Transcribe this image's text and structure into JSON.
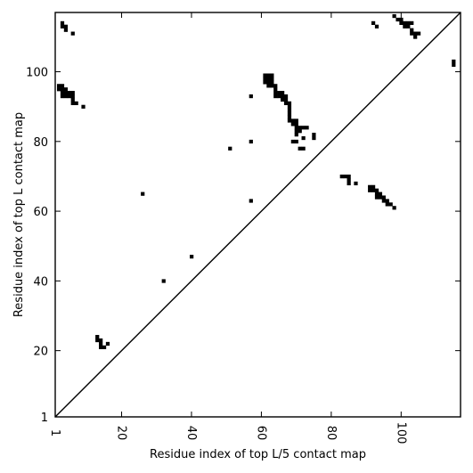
{
  "chart_data": {
    "type": "heatmap",
    "xlabel": "Residue index of top L/5 contact map",
    "ylabel": "Residue index of top L contact map",
    "xlim": [
      1,
      117
    ],
    "ylim": [
      1,
      117
    ],
    "x_ticks": [
      {
        "value": 1,
        "label": "1"
      },
      {
        "value": 20,
        "label": "20"
      },
      {
        "value": 40,
        "label": "40"
      },
      {
        "value": 60,
        "label": "60"
      },
      {
        "value": 80,
        "label": "80"
      },
      {
        "value": 100,
        "label": "100"
      }
    ],
    "y_ticks": [
      {
        "value": 1,
        "label": "1"
      },
      {
        "value": 20,
        "label": "20"
      },
      {
        "value": 40,
        "label": "40"
      },
      {
        "value": 60,
        "label": "60"
      },
      {
        "value": 80,
        "label": "80"
      },
      {
        "value": 100,
        "label": "100"
      }
    ],
    "diagonal": true,
    "grid": false,
    "cell_color": "#000000",
    "upper_triangle_contacts": [
      [
        3,
        114
      ],
      [
        3,
        113
      ],
      [
        4,
        113
      ],
      [
        4,
        112
      ],
      [
        6,
        111
      ],
      [
        2,
        96
      ],
      [
        2,
        95
      ],
      [
        3,
        96
      ],
      [
        3,
        95
      ],
      [
        4,
        95
      ],
      [
        3,
        94
      ],
      [
        3,
        93
      ],
      [
        4,
        94
      ],
      [
        4,
        93
      ],
      [
        5,
        94
      ],
      [
        5,
        93
      ],
      [
        6,
        94
      ],
      [
        6,
        93
      ],
      [
        6,
        92
      ],
      [
        6,
        91
      ],
      [
        7,
        91
      ],
      [
        9,
        90
      ],
      [
        57,
        93
      ],
      [
        61,
        99
      ],
      [
        61,
        98
      ],
      [
        61,
        97
      ],
      [
        62,
        99
      ],
      [
        62,
        98
      ],
      [
        62,
        97
      ],
      [
        62,
        96
      ],
      [
        63,
        99
      ],
      [
        63,
        98
      ],
      [
        63,
        97
      ],
      [
        63,
        96
      ],
      [
        64,
        96
      ],
      [
        64,
        95
      ],
      [
        64,
        94
      ],
      [
        64,
        93
      ],
      [
        65,
        94
      ],
      [
        65,
        93
      ],
      [
        66,
        94
      ],
      [
        66,
        93
      ],
      [
        66,
        92
      ],
      [
        67,
        93
      ],
      [
        67,
        92
      ],
      [
        67,
        91
      ],
      [
        68,
        91
      ],
      [
        68,
        90
      ],
      [
        68,
        89
      ],
      [
        68,
        88
      ],
      [
        68,
        87
      ],
      [
        68,
        86
      ],
      [
        69,
        86
      ],
      [
        69,
        85
      ],
      [
        70,
        86
      ],
      [
        70,
        85
      ],
      [
        70,
        84
      ],
      [
        70,
        83
      ],
      [
        71,
        84
      ],
      [
        71,
        83
      ],
      [
        72,
        84
      ],
      [
        73,
        84
      ],
      [
        70,
        82
      ],
      [
        72,
        81
      ],
      [
        75,
        82
      ],
      [
        75,
        81
      ],
      [
        69,
        80
      ],
      [
        70,
        80
      ],
      [
        57,
        80
      ],
      [
        51,
        78
      ],
      [
        71,
        78
      ],
      [
        72,
        78
      ],
      [
        92,
        114
      ],
      [
        93,
        113
      ],
      [
        98,
        116
      ],
      [
        99,
        115
      ],
      [
        100,
        115
      ],
      [
        100,
        114
      ],
      [
        101,
        114
      ],
      [
        101,
        113
      ],
      [
        102,
        114
      ],
      [
        102,
        113
      ],
      [
        103,
        114
      ],
      [
        103,
        112
      ],
      [
        103,
        111
      ],
      [
        104,
        111
      ],
      [
        104,
        110
      ],
      [
        105,
        111
      ],
      [
        115,
        103
      ],
      [
        115,
        102
      ]
    ],
    "lower_triangle_contacts": [
      [
        26,
        65
      ],
      [
        57,
        63
      ],
      [
        40,
        47
      ],
      [
        32,
        40
      ],
      [
        83,
        70
      ],
      [
        84,
        70
      ],
      [
        85,
        70
      ],
      [
        85,
        69
      ],
      [
        85,
        68
      ],
      [
        87,
        68
      ],
      [
        91,
        67
      ],
      [
        91,
        66
      ],
      [
        92,
        67
      ],
      [
        92,
        66
      ],
      [
        93,
        66
      ],
      [
        93,
        65
      ],
      [
        93,
        64
      ],
      [
        94,
        65
      ],
      [
        94,
        64
      ],
      [
        95,
        64
      ],
      [
        95,
        63
      ],
      [
        96,
        63
      ],
      [
        96,
        62
      ],
      [
        97,
        62
      ],
      [
        98,
        61
      ],
      [
        13,
        24
      ],
      [
        13,
        23
      ],
      [
        14,
        23
      ],
      [
        14,
        22
      ],
      [
        14,
        21
      ],
      [
        15,
        21
      ],
      [
        16,
        22
      ]
    ]
  }
}
